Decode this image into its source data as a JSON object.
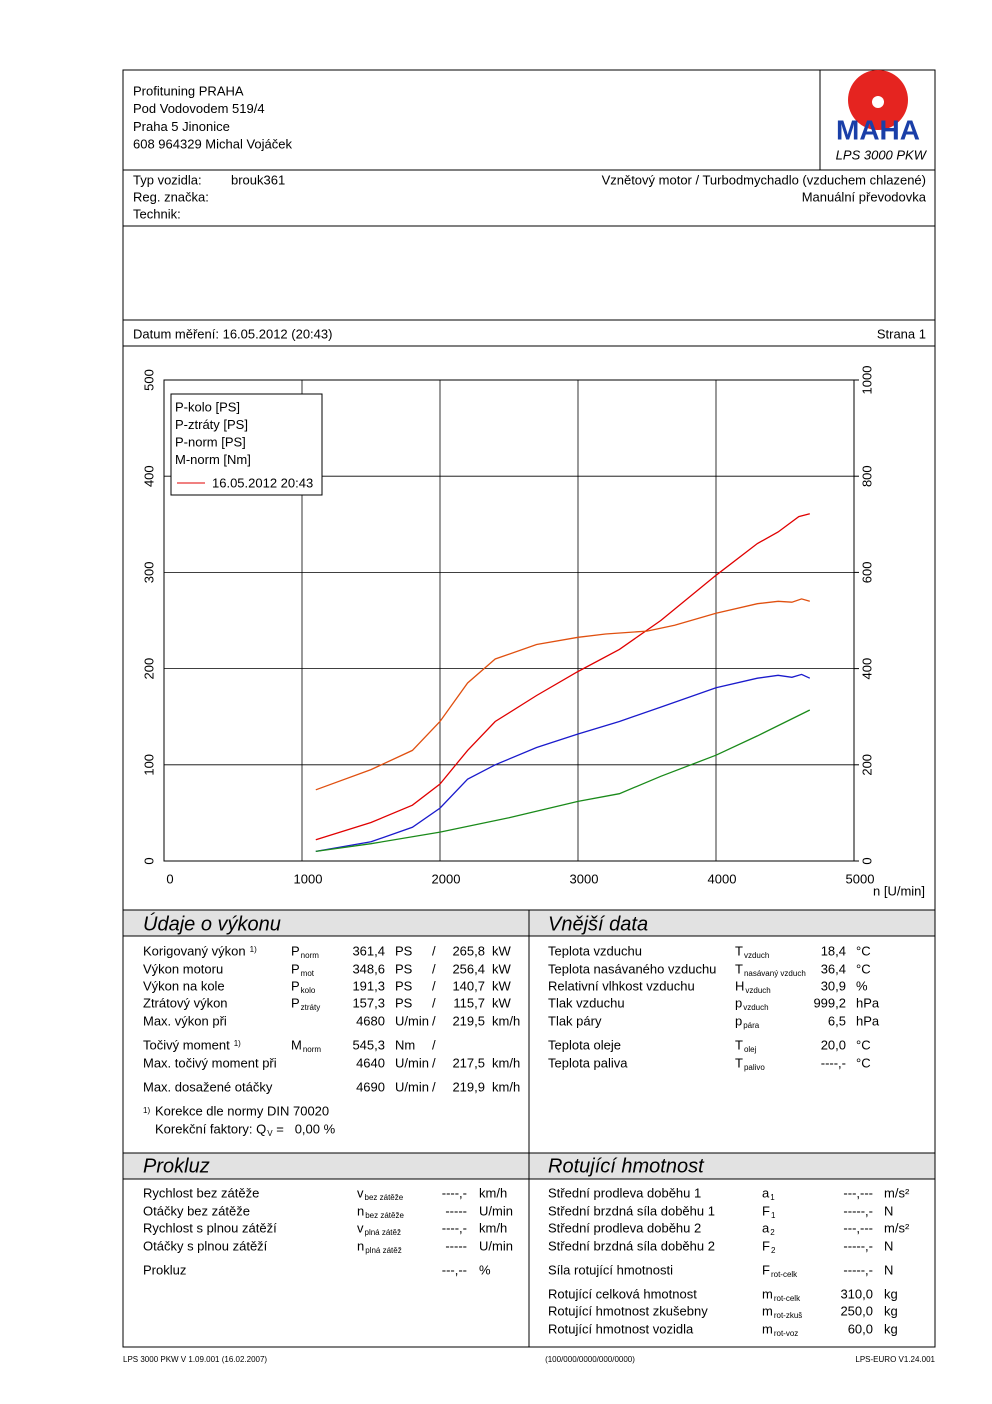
{
  "header": {
    "company": [
      "Profituning PRAHA",
      "Pod Vodovodem 519/4",
      "Praha 5 Jinonice",
      "608 964329 Michal Vojáček"
    ],
    "logo": "MAHA",
    "model": "LPS 3000 PKW"
  },
  "vehicle": {
    "type_label": "Typ vozidla:",
    "type": "brouk361",
    "reg_label": "Reg. značka:",
    "tech_label": "Technik:",
    "engine": "Vznětový motor / Turbodmychadlo (vzduchem chlazené)",
    "gearbox": "Manuální převodovka"
  },
  "date_line": {
    "label": "Datum měření: 16.05.2012 (20:43)",
    "page": "Strana 1"
  },
  "chart_data": {
    "type": "line",
    "x_label": "n [U/min]",
    "xlim": [
      0,
      5000
    ],
    "xticks": [
      0,
      1000,
      2000,
      3000,
      4000,
      5000
    ],
    "ylim": [
      0,
      500
    ],
    "yticks": [
      0,
      100,
      200,
      300,
      400,
      500
    ],
    "y2lim": [
      0,
      1000
    ],
    "y2ticks": [
      0,
      200,
      400,
      600,
      800,
      1000
    ],
    "y2_color": "#e05010",
    "grid": true,
    "legend_date": "16.05.2012 20:43",
    "legend_date_color": "#e00000",
    "series": [
      {
        "name": "P-kolo [PS]",
        "color": "#1a1acc",
        "x": [
          1100,
          1500,
          1800,
          2000,
          2200,
          2400,
          2700,
          3000,
          3300,
          3600,
          4000,
          4300,
          4450,
          4550,
          4620,
          4680
        ],
        "values": [
          10,
          20,
          35,
          55,
          85,
          100,
          118,
          132,
          145,
          160,
          180,
          190,
          193,
          191,
          194,
          190
        ]
      },
      {
        "name": "P-ztráty [PS]",
        "color": "#1a8a1a",
        "x": [
          1100,
          1500,
          2000,
          2500,
          3000,
          3300,
          3600,
          4000,
          4300,
          4680
        ],
        "values": [
          10,
          18,
          30,
          45,
          62,
          70,
          88,
          110,
          130,
          157
        ]
      },
      {
        "name": "P-norm [PS]",
        "color": "#e00000",
        "x": [
          1100,
          1500,
          1800,
          2000,
          2200,
          2400,
          2700,
          3000,
          3300,
          3600,
          4000,
          4300,
          4450,
          4600,
          4680
        ],
        "values": [
          22,
          40,
          58,
          80,
          115,
          145,
          172,
          197,
          220,
          250,
          297,
          330,
          342,
          358,
          361
        ]
      },
      {
        "name": "M-norm [Nm]",
        "color": "#e05010",
        "axis": "y2",
        "x": [
          1100,
          1500,
          1800,
          2000,
          2200,
          2400,
          2700,
          3000,
          3200,
          3500,
          3700,
          4000,
          4300,
          4450,
          4550,
          4620,
          4680
        ],
        "values": [
          148,
          190,
          230,
          290,
          370,
          420,
          450,
          465,
          472,
          478,
          490,
          515,
          535,
          540,
          538,
          545,
          540
        ]
      }
    ]
  },
  "performance": {
    "title": "Údaje o výkonu",
    "rows": [
      {
        "label": "Korigovaný výkon",
        "note": "1)",
        "sym": "P",
        "sub": "norm",
        "v1": "361,4",
        "u1": "PS",
        "sep": "/",
        "v2": "265,8",
        "u2": "kW",
        "color": "#e00000"
      },
      {
        "label": "Výkon motoru",
        "sym": "P",
        "sub": "mot",
        "v1": "348,6",
        "u1": "PS",
        "sep": "/",
        "v2": "256,4",
        "u2": "kW",
        "color": "#e00000"
      },
      {
        "label": "Výkon na kole",
        "sym": "P",
        "sub": "kolo",
        "v1": "191,3",
        "u1": "PS",
        "sep": "/",
        "v2": "140,7",
        "u2": "kW",
        "color": "#1a1acc"
      },
      {
        "label": "Ztrátový výkon",
        "sym": "P",
        "sub": "ztráty",
        "v1": "157,3",
        "u1": "PS",
        "sep": "/",
        "v2": "115,7",
        "u2": "kW",
        "color": "#1a8a1a"
      },
      {
        "label": "Max. výkon při",
        "v1": "4680",
        "u1": "U/min",
        "sep": "/",
        "v2": "219,5",
        "u2": "km/h"
      },
      {
        "label": "Točivý moment",
        "note": "1)",
        "sym": "M",
        "sub": "norm",
        "v1": "545,3",
        "u1": "Nm",
        "sep": "/",
        "color": "#e05010"
      },
      {
        "label": "Max. točivý moment při",
        "v1": "4640",
        "u1": "U/min",
        "sep": "/",
        "v2": "217,5",
        "u2": "km/h"
      },
      {
        "label": "Max. dosažené otáčky",
        "v1": "4690",
        "u1": "U/min",
        "sep": "/",
        "v2": "219,9",
        "u2": "km/h"
      }
    ],
    "footnote": {
      "note": "1)",
      "line1": "Korekce dle normy DIN 70020",
      "line2": "Korekční faktory: Q",
      "line2_sub": "V",
      "line2_value": "=   0,00 %"
    }
  },
  "external": {
    "title": "Vnější data",
    "rows": [
      {
        "label": "Teplota vzduchu",
        "sym": "T",
        "sub": "vzduch",
        "value": "18,4",
        "unit": "°C"
      },
      {
        "label": "Teplota nasávaného vzduchu",
        "sym": "T",
        "sub": "nasávaný vzduch",
        "value": "36,4",
        "unit": "°C"
      },
      {
        "label": "Relativní vlhkost vzduchu",
        "sym": "H",
        "sub": "vzduch",
        "value": "30,9",
        "unit": "%"
      },
      {
        "label": "Tlak vzduchu",
        "sym": "p",
        "sub": "vzduch",
        "value": "999,2",
        "unit": "hPa"
      },
      {
        "label": "Tlak páry",
        "sym": "p",
        "sub": "pára",
        "value": "6,5",
        "unit": "hPa"
      },
      {
        "label": "Teplota oleje",
        "sym": "T",
        "sub": "olej",
        "value": "20,0",
        "unit": "°C"
      },
      {
        "label": "Teplota paliva",
        "sym": "T",
        "sub": "palivo",
        "value": "----,-",
        "unit": "°C"
      }
    ]
  },
  "slip": {
    "title": "Prokluz",
    "rows": [
      {
        "label": "Rychlost bez zátěže",
        "sym": "v",
        "sub": "bez zátěže",
        "value": "----,-",
        "unit": "km/h"
      },
      {
        "label": "Otáčky bez zátěže",
        "sym": "n",
        "sub": "bez zátěže",
        "value": "-----",
        "unit": "U/min"
      },
      {
        "label": "Rychlost s plnou zátěží",
        "sym": "v",
        "sub": "plná zátěž",
        "value": "----,-",
        "unit": "km/h"
      },
      {
        "label": "Otáčky s plnou zátěží",
        "sym": "n",
        "sub": "plná zátěž",
        "value": "-----",
        "unit": "U/min"
      },
      {
        "label": "Prokluz",
        "value": "---,--",
        "unit": "%"
      }
    ]
  },
  "rotating": {
    "title": "Rotující hmotnost",
    "rows": [
      {
        "label": "Střední prodleva doběhu 1",
        "sym": "a",
        "sub": "1",
        "value": "---,---",
        "unit": "m/s²"
      },
      {
        "label": "Střední brzdná síla doběhu 1",
        "sym": "F",
        "sub": "1",
        "value": "-----,-",
        "unit": "N"
      },
      {
        "label": "Střední prodleva doběhu 2",
        "sym": "a",
        "sub": "2",
        "value": "---,---",
        "unit": "m/s²"
      },
      {
        "label": "Střední brzdná síla doběhu 2",
        "sym": "F",
        "sub": "2",
        "value": "-----,-",
        "unit": "N"
      },
      {
        "label": "Síla rotující hmotnosti",
        "sym": "F",
        "sub": "rot-celk",
        "value": "-----,-",
        "unit": "N"
      },
      {
        "label": "Rotující celková hmotnost",
        "sym": "m",
        "sub": "rot-celk",
        "value": "310,0",
        "unit": "kg"
      },
      {
        "label": "Rotující hmotnost zkušebny",
        "sym": "m",
        "sub": "rot-zkuš",
        "value": "250,0",
        "unit": "kg"
      },
      {
        "label": "Rotující hmotnost vozidla",
        "sym": "m",
        "sub": "rot-voz",
        "value": "60,0",
        "unit": "kg"
      }
    ]
  },
  "footer": {
    "left": "LPS 3000 PKW V 1.09.001 (16.02.2007)",
    "center": "(100/000/0000/000/0000)",
    "right": "LPS-EURO V1.24.001"
  }
}
